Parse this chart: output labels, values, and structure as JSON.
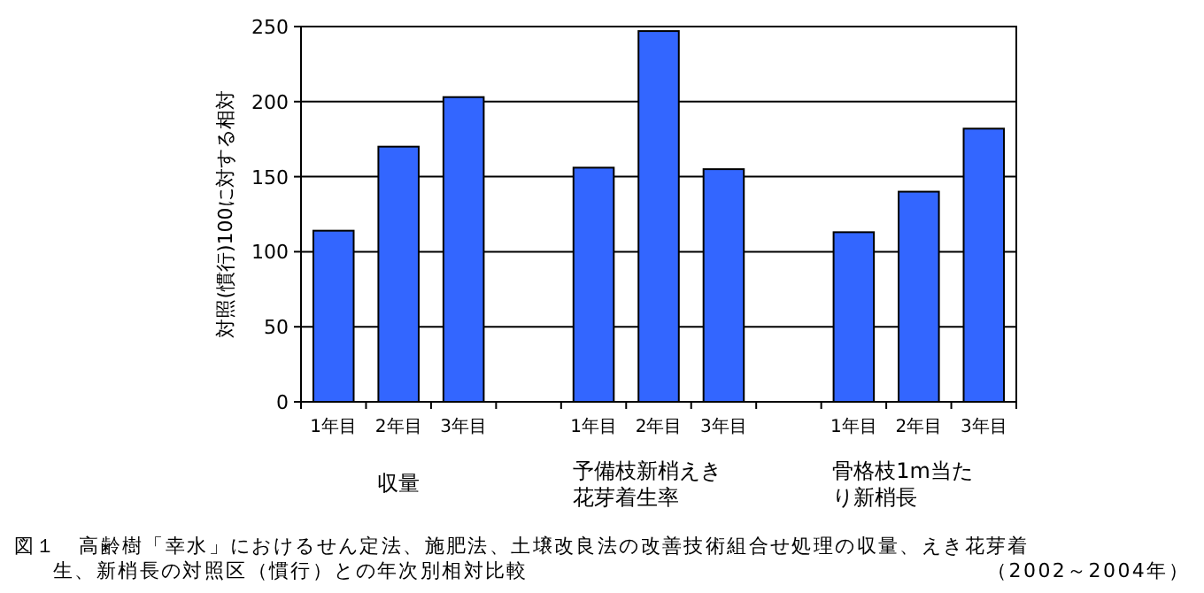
{
  "chart_data": {
    "type": "bar",
    "ylabel": "対照(慣行)100に対する相対",
    "categories": [
      "1年目",
      "2年目",
      "3年目",
      null,
      "1年目",
      "2年目",
      "3年目",
      null,
      "1年目",
      "2年目",
      "3年目"
    ],
    "values": [
      114,
      170,
      203,
      null,
      156,
      247,
      155,
      null,
      113,
      140,
      182
    ],
    "color": "#3366ff",
    "ylim": [
      0,
      250
    ],
    "yticks": [
      0,
      50,
      100,
      150,
      200,
      250
    ],
    "grid": "y",
    "annotations": [
      "収量",
      "予備枝新梢えき花芽着生率",
      "骨格枝1m当たり新梢長",
      "図１　高齢樹「幸水」におけるせん定法、施肥法、土壌改良法の改善技術組合せ処理の収量、えき花芽着生、新梢長の対照区（慣行）との年次別相対比較",
      "（2002～2004年）"
    ]
  }
}
